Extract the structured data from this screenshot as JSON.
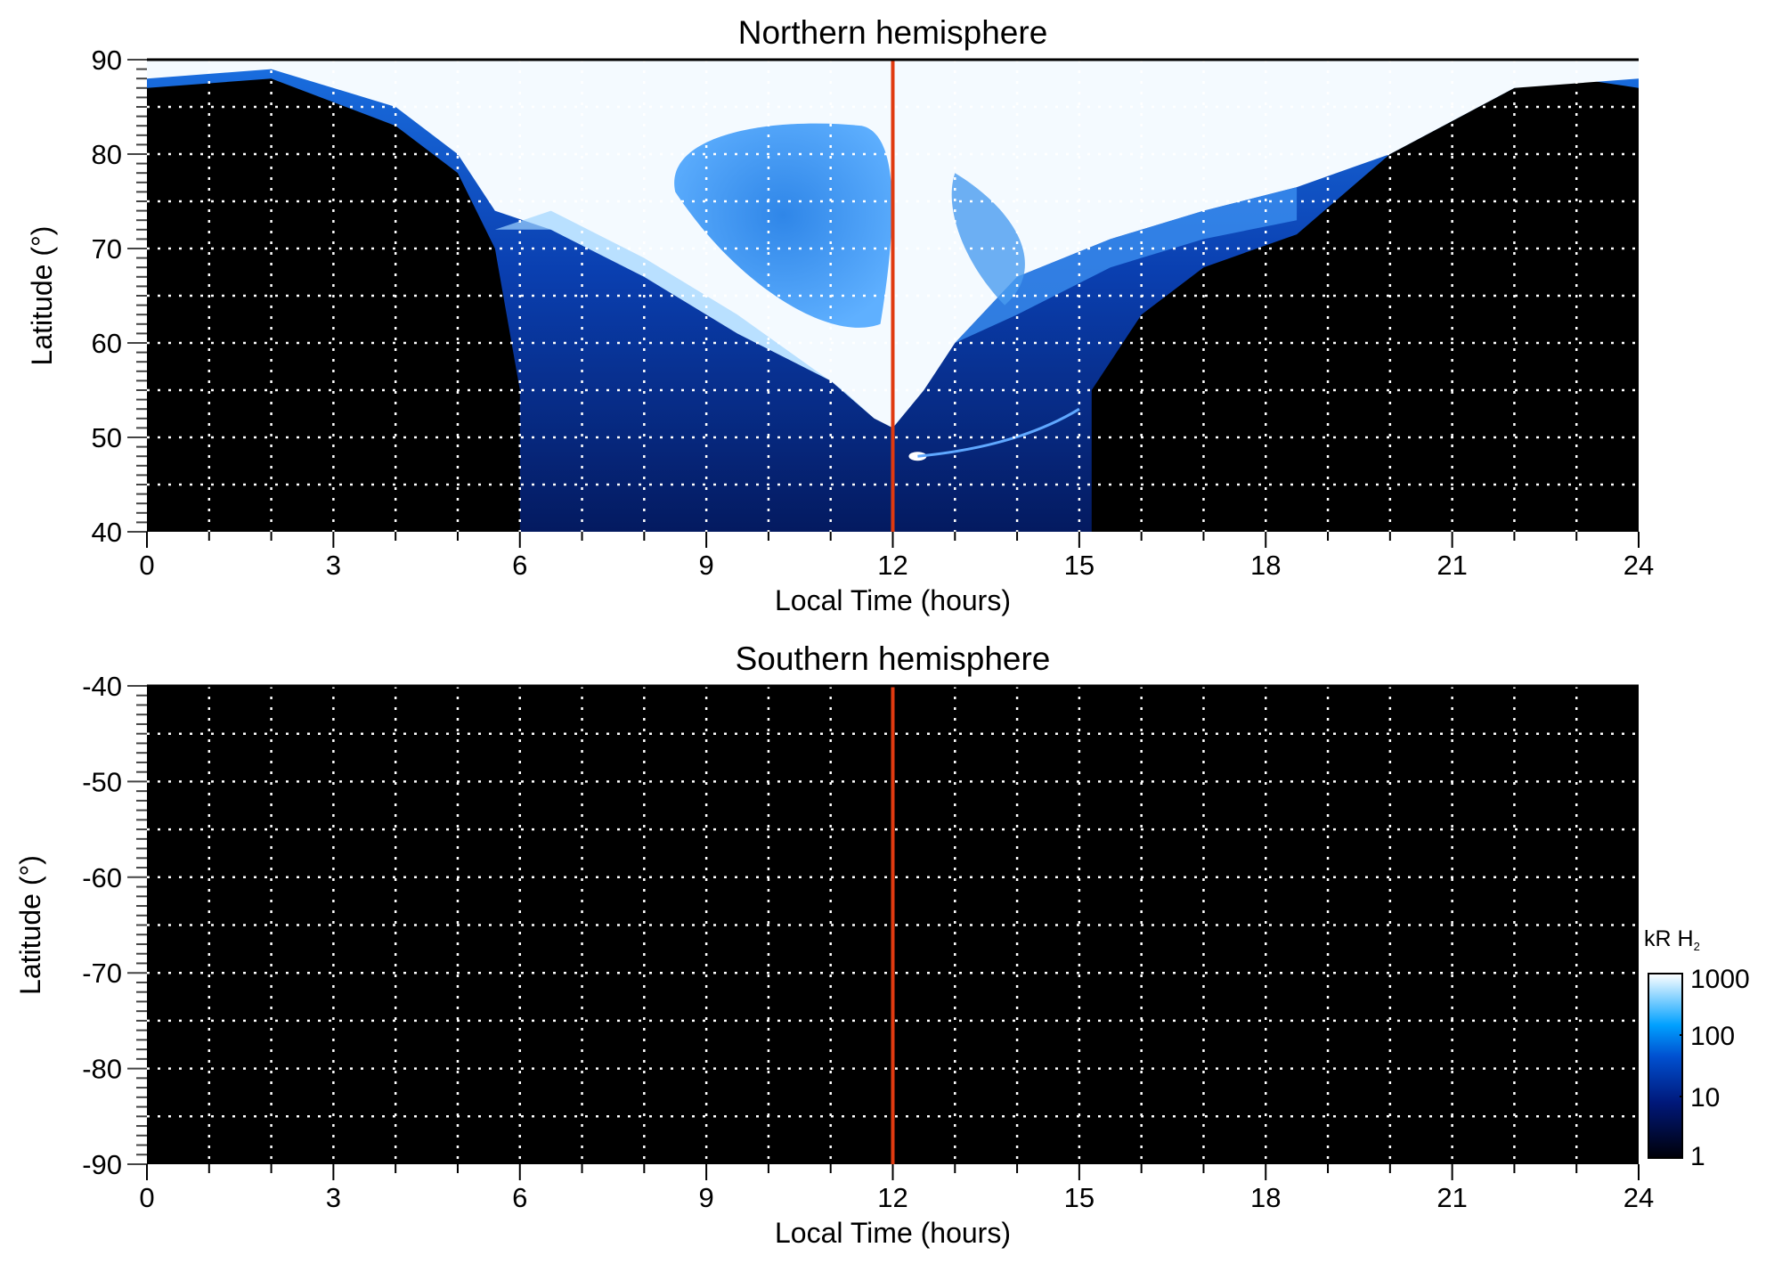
{
  "chart_data": [
    {
      "type": "heatmap",
      "title": "Northern hemisphere",
      "xlabel": "Local Time (hours)",
      "ylabel": "Latitude (°)",
      "xlim": [
        0,
        24
      ],
      "ylim": [
        40,
        90
      ],
      "xticks": [
        0,
        3,
        6,
        9,
        12,
        15,
        18,
        21,
        24
      ],
      "yticks": [
        40,
        50,
        60,
        70,
        80,
        90
      ],
      "grid": true,
      "marker_line_x": 12,
      "marker_line_color": "#e03a10",
      "description_values": {
        "dark_nightside_boundary_dawn": [
          [
            0,
            87
          ],
          [
            2,
            88
          ],
          [
            4,
            83
          ],
          [
            5,
            78
          ],
          [
            5.6,
            70
          ],
          [
            6,
            55
          ],
          [
            6,
            40
          ]
        ],
        "dark_nightside_boundary_dusk": [
          [
            15.2,
            40
          ],
          [
            15.2,
            55
          ],
          [
            16,
            63
          ],
          [
            17,
            68
          ],
          [
            18.5,
            71.5
          ],
          [
            20,
            80
          ],
          [
            22,
            87
          ],
          [
            23,
            88
          ],
          [
            24,
            87
          ]
        ]
      }
    },
    {
      "type": "heatmap",
      "title": "Southern hemisphere",
      "xlabel": "Local Time (hours)",
      "ylabel": "Latitude (°)",
      "xlim": [
        0,
        24
      ],
      "ylim": [
        -90,
        -40
      ],
      "xticks": [
        0,
        3,
        6,
        9,
        12,
        15,
        18,
        21,
        24
      ],
      "yticks": [
        -40,
        -50,
        -60,
        -70,
        -80,
        -90
      ],
      "grid": true,
      "marker_line_x": 12,
      "marker_line_color": "#e03a10"
    }
  ],
  "colorbar": {
    "label": "kR H",
    "label_sub": "2",
    "scale": "log",
    "ticks": [
      "1000",
      "100",
      "10",
      "1"
    ],
    "range": [
      1,
      1000
    ],
    "colors": [
      "#000008",
      "#001a80",
      "#0050d0",
      "#00a0ff",
      "#ffffff"
    ]
  }
}
